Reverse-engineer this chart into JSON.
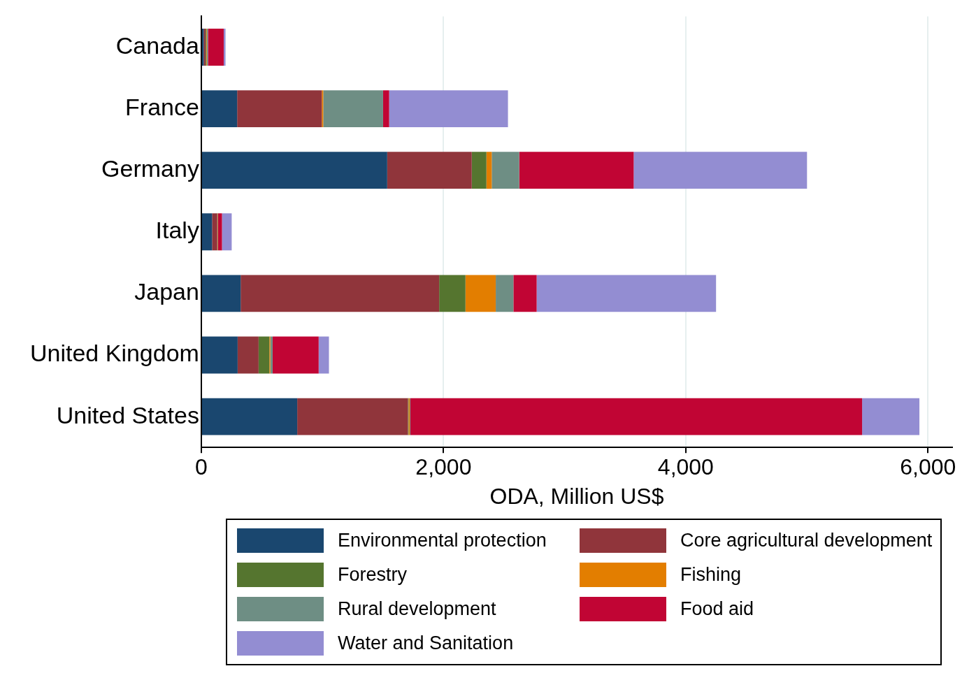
{
  "chart_data": {
    "type": "bar",
    "orientation": "horizontal",
    "stacked": true,
    "xlabel": "ODA, Million US$",
    "categories": [
      "Canada",
      "France",
      "Germany",
      "Italy",
      "Japan",
      "United Kingdom",
      "United States"
    ],
    "series": [
      {
        "name": "Environmental protection",
        "color": "#1a476f",
        "values": [
          20,
          296,
          1535,
          89,
          325,
          300,
          792
        ]
      },
      {
        "name": "Core agricultural development",
        "color": "#90353b",
        "values": [
          15,
          699,
          698,
          43,
          1639,
          173,
          914
        ]
      },
      {
        "name": "Forestry",
        "color": "#55752f",
        "values": [
          5,
          0,
          121,
          3,
          217,
          89,
          5
        ]
      },
      {
        "name": "Fishing",
        "color": "#e37e00",
        "values": [
          5,
          12,
          44,
          3,
          250,
          8,
          10
        ]
      },
      {
        "name": "Rural development",
        "color": "#6e8e84",
        "values": [
          10,
          494,
          227,
          null,
          146,
          19,
          5
        ]
      },
      {
        "name": "Food aid",
        "color": "#c10534",
        "values": [
          130,
          50,
          945,
          33,
          192,
          380,
          3730
        ]
      },
      {
        "name": "Water and Sanitation",
        "color": "#938dd2",
        "values": [
          15,
          981,
          1431,
          80,
          1481,
          85,
          473
        ]
      }
    ],
    "xlim": [
      0,
      6200
    ],
    "xticks": [
      {
        "value": 0,
        "label": "0"
      },
      {
        "value": 2000,
        "label": "2,000"
      },
      {
        "value": 4000,
        "label": "4,000"
      },
      {
        "value": 6000,
        "label": "6,000"
      }
    ],
    "grid": "x",
    "legend": "bottom"
  }
}
